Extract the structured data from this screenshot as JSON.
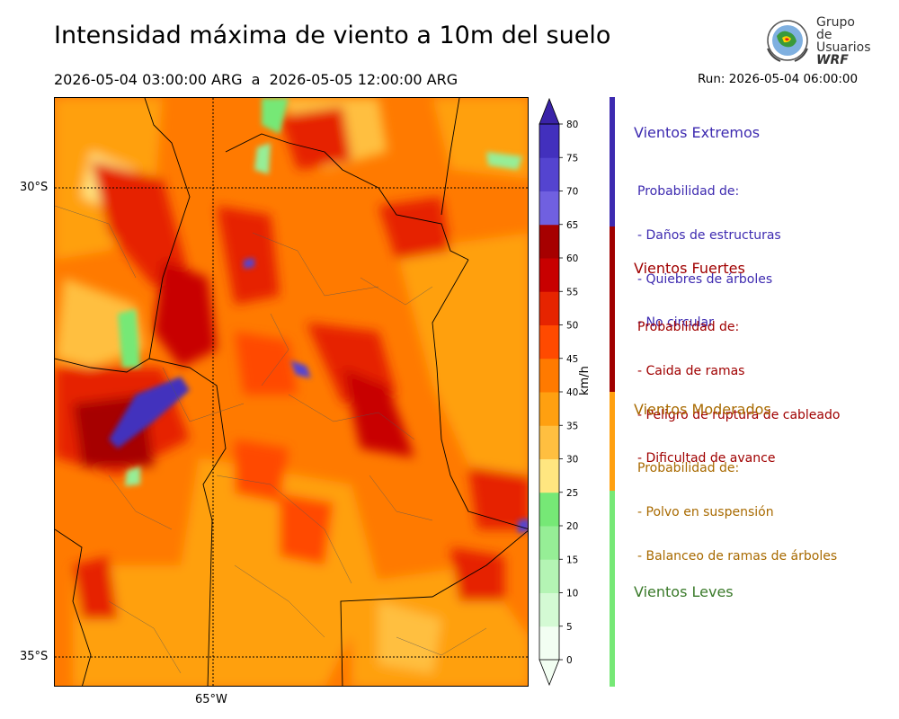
{
  "header": {
    "title": "Intensidad máxima de viento a 10m del suelo",
    "period": "2026-05-04 03:00:00 ARG  a  2026-05-05 12:00:00 ARG",
    "run": "Run: 2026-05-04 06:00:00"
  },
  "logo": {
    "line1": "Grupo de",
    "line2": "Usuarios",
    "line3": "WRF"
  },
  "map": {
    "lat_labels": [
      "30°S",
      "35°S"
    ],
    "lon_labels": [
      "65°W"
    ]
  },
  "colorbar": {
    "unit": "km/h",
    "ticks": [
      "0",
      "5",
      "10",
      "15",
      "20",
      "25",
      "30",
      "35",
      "40",
      "45",
      "50",
      "55",
      "60",
      "65",
      "70",
      "75",
      "80"
    ],
    "colors": [
      "#f2fef2",
      "#d4fad4",
      "#b4f4b4",
      "#96ee96",
      "#76e876",
      "#ffe680",
      "#ffbf40",
      "#ffa010",
      "#ff7a00",
      "#ff4a00",
      "#e62400",
      "#c80000",
      "#a60000",
      "#7060e0",
      "#5444d0",
      "#4230bd",
      "#3a23a8"
    ]
  },
  "legend": [
    {
      "title": "Vientos Extremos",
      "color": "#3d2ab0",
      "lines": [
        "Probabilidad de:",
        "- Daños de estructuras",
        "- Quiebres de árboles",
        "- No circular"
      ]
    },
    {
      "title": "Vientos Fuertes",
      "color": "#a00000",
      "lines": [
        "Probabilidad de:",
        "- Caida de ramas",
        "- Peligro de ruptura de cableado",
        "- Dificultad de avance"
      ]
    },
    {
      "title": "Vientos Moderados",
      "color": "#a86a00",
      "lines": [
        "Probabilidad de:",
        "- Polvo en suspensión",
        "- Balanceo de ramas de árboles"
      ]
    },
    {
      "title": "Vientos Leves",
      "color": "#3a7a2a",
      "lines": []
    }
  ]
}
